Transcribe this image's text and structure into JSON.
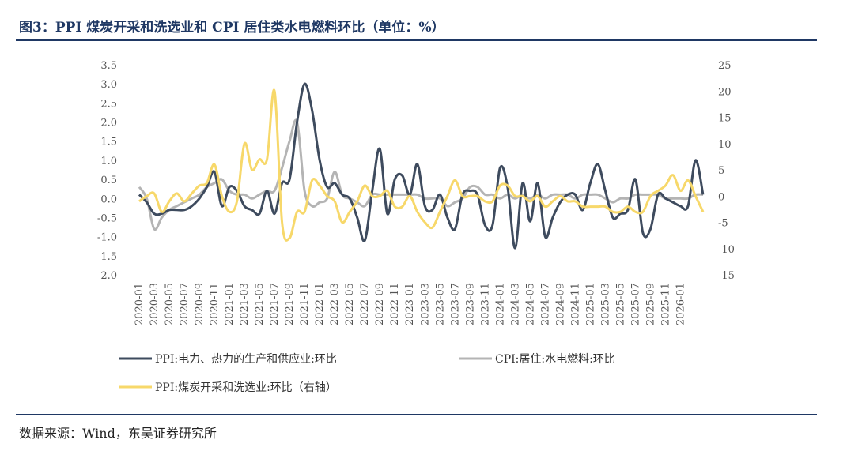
{
  "figure": {
    "title": "图3：PPI 煤炭开采和洗选业和 CPI 居住类水电燃料环比（单位：%）",
    "source": "数据来源：Wind，东吴证券研究所"
  },
  "chart_data": {
    "type": "line",
    "title": "图3：PPI 煤炭开采和洗选业和 CPI 居住类水电燃料环比（单位：%）",
    "grid": false,
    "legend_position": "bottom",
    "x_tick_labels": [
      "2020-01",
      "2020-03",
      "2020-05",
      "2020-07",
      "2020-09",
      "2020-11",
      "2021-01",
      "2021-03",
      "2021-05",
      "2021-07",
      "2021-09",
      "2021-11",
      "2022-01",
      "2022-03",
      "2022-05",
      "2022-07",
      "2022-09",
      "2022-11",
      "2023-01",
      "2023-03",
      "2023-05",
      "2023-07",
      "2023-09",
      "2023-11",
      "2024-01",
      "2024-03",
      "2024-05",
      "2024-07",
      "2024-09",
      "2024-11",
      "2025-01",
      "2025-03",
      "2025-05",
      "2025-07",
      "2025-09",
      "2025-11",
      "2026-01"
    ],
    "y_left": {
      "min": -2.0,
      "max": 3.5,
      "ticks": [
        "3.5",
        "3.0",
        "2.5",
        "2.0",
        "1.5",
        "1.0",
        "0.5",
        "0.0",
        "-0.5",
        "-1.0",
        "-1.5",
        "-2.0"
      ]
    },
    "y_right": {
      "min": -15,
      "max": 25,
      "ticks": [
        "25",
        "20",
        "15",
        "10",
        "5",
        "0",
        "-5",
        "-10",
        "-15"
      ]
    },
    "series": [
      {
        "name": "PPI:电力、热力的生产和供应业:环比",
        "axis": "left",
        "color": "#3e4b5e",
        "values": [
          0.1,
          -0.1,
          -0.4,
          -0.4,
          -0.3,
          -0.3,
          -0.3,
          -0.2,
          0.0,
          0.3,
          0.7,
          -0.2,
          0.3,
          0.2,
          -0.2,
          -0.3,
          -0.4,
          0.2,
          -0.4,
          0.4,
          0.5,
          2.0,
          3.0,
          2.3,
          1.0,
          0.3,
          0.4,
          0.1,
          0.0,
          -0.5,
          -1.1,
          0.2,
          1.3,
          -0.4,
          0.5,
          0.6,
          0.1,
          0.9,
          -0.2,
          -0.3,
          0.1,
          -0.5,
          -0.8,
          0.1,
          0.2,
          0.1,
          -0.7,
          -0.7,
          0.8,
          0.3,
          -1.3,
          0.4,
          -0.6,
          0.4,
          -1.0,
          -0.5,
          -0.1,
          0.1,
          0.1,
          -0.3,
          0.4,
          0.9,
          0.2,
          -0.5,
          -0.4,
          -0.3,
          0.5,
          -0.9,
          -0.8,
          0.1,
          0.0,
          -0.1,
          -0.2,
          -0.2,
          1.0,
          0.1
        ]
      },
      {
        "name": "CPI:居住:水电燃料:环比",
        "axis": "left",
        "color": "#b4b4b4",
        "values": [
          0.3,
          0.0,
          -0.8,
          -0.5,
          -0.3,
          -0.2,
          -0.1,
          0.0,
          0.1,
          0.3,
          0.4,
          0.5,
          0.2,
          0.1,
          0.1,
          0.0,
          0.1,
          0.2,
          0.2,
          0.8,
          1.5,
          2.0,
          0.2,
          -0.2,
          -0.1,
          0.0,
          0.7,
          0.1,
          0.0,
          -0.1,
          -0.2,
          0.1,
          0.1,
          0.1,
          0.1,
          0.1,
          0.1,
          0.1,
          0.0,
          0.0,
          0.0,
          -0.2,
          -0.1,
          0.0,
          0.3,
          0.3,
          0.1,
          0.1,
          0.0,
          0.1,
          0.0,
          0.1,
          0.0,
          0.1,
          0.0,
          0.1,
          0.1,
          0.1,
          0.0,
          0.1,
          0.1,
          0.1,
          0.0,
          -0.1,
          0.0,
          0.0,
          0.1,
          0.1,
          0.1,
          0.1,
          0.0,
          0.0,
          0.0,
          0.0,
          0.1,
          0.1
        ]
      },
      {
        "name": "PPI:煤炭开采和洗选业:环比（右轴）",
        "axis": "right",
        "color": "#f7d86a",
        "values": [
          -1,
          0,
          0.5,
          -3,
          -1,
          0.5,
          -1,
          0.5,
          2,
          2.5,
          6,
          0,
          -3,
          -1,
          10,
          5,
          7,
          7,
          20,
          -5,
          -8,
          -3,
          -3,
          3,
          2,
          0,
          -1,
          -5,
          -3,
          -1,
          2,
          0,
          0,
          1,
          -2,
          -2,
          0,
          -3,
          -5,
          -6,
          -3,
          0,
          3,
          0,
          0,
          0,
          -1,
          -1,
          2,
          2,
          0,
          0,
          -1,
          0,
          -2,
          -1,
          0,
          -1,
          -1,
          -2,
          -2,
          -2,
          -2,
          -3,
          -3,
          -2,
          -3,
          -3,
          0,
          1,
          2,
          4,
          1,
          3,
          0,
          -3
        ]
      }
    ]
  }
}
